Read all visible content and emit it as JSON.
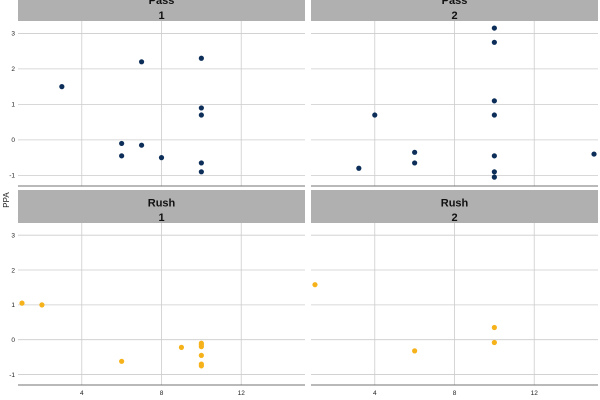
{
  "chart_data": {
    "type": "scatter",
    "ylabel": "PPA",
    "xlabel": "",
    "xlim": [
      0.8,
      15.2
    ],
    "ylim": [
      -1.3,
      3.35
    ],
    "x_ticks": [
      4,
      8,
      12
    ],
    "y_ticks": [
      -1,
      0,
      1,
      2,
      3
    ],
    "grid": true,
    "colors": {
      "Pass": "#0c2e59",
      "Rush": "#f6b21a",
      "strip_bg": "#b0b0b0",
      "grid": "#cccccc"
    },
    "panels": [
      {
        "strip": [
          "Pass",
          "1"
        ],
        "series": "Pass",
        "points": [
          {
            "x": 3,
            "y": 1.5
          },
          {
            "x": 6,
            "y": -0.1
          },
          {
            "x": 6,
            "y": -0.45
          },
          {
            "x": 7,
            "y": 2.2
          },
          {
            "x": 7,
            "y": -0.15
          },
          {
            "x": 8,
            "y": -0.5
          },
          {
            "x": 10,
            "y": 2.3
          },
          {
            "x": 10,
            "y": 0.9
          },
          {
            "x": 10,
            "y": 0.7
          },
          {
            "x": 10,
            "y": -0.65
          },
          {
            "x": 10,
            "y": -0.9
          }
        ]
      },
      {
        "strip": [
          "Pass",
          "2"
        ],
        "series": "Pass",
        "points": [
          {
            "x": 3.2,
            "y": -0.8
          },
          {
            "x": 4,
            "y": 0.7
          },
          {
            "x": 6,
            "y": -0.35
          },
          {
            "x": 6,
            "y": -0.65
          },
          {
            "x": 10,
            "y": 3.15
          },
          {
            "x": 10,
            "y": 2.75
          },
          {
            "x": 10,
            "y": 1.1
          },
          {
            "x": 10,
            "y": 0.7
          },
          {
            "x": 10,
            "y": -0.45
          },
          {
            "x": 10,
            "y": -0.9
          },
          {
            "x": 10,
            "y": -1.05
          },
          {
            "x": 15,
            "y": -0.4
          }
        ]
      },
      {
        "strip": [
          "Rush",
          "1"
        ],
        "series": "Rush",
        "points": [
          {
            "x": 1,
            "y": 1.05
          },
          {
            "x": 2,
            "y": 1.0
          },
          {
            "x": 6,
            "y": -0.62
          },
          {
            "x": 9,
            "y": -0.22
          },
          {
            "x": 10,
            "y": -0.1
          },
          {
            "x": 10,
            "y": -0.15
          },
          {
            "x": 10,
            "y": -0.2
          },
          {
            "x": 10,
            "y": -0.45
          },
          {
            "x": 10,
            "y": -0.7
          },
          {
            "x": 10,
            "y": -0.75
          }
        ]
      },
      {
        "strip": [
          "Rush",
          "2"
        ],
        "series": "Rush",
        "points": [
          {
            "x": 1,
            "y": 1.58
          },
          {
            "x": 6,
            "y": -0.32
          },
          {
            "x": 10,
            "y": 0.35
          },
          {
            "x": 10,
            "y": -0.08
          }
        ]
      }
    ]
  }
}
